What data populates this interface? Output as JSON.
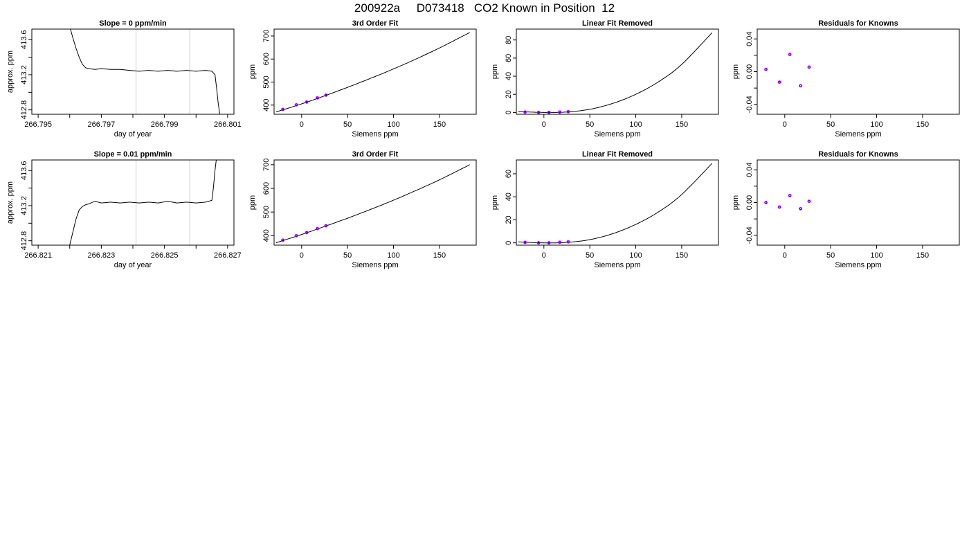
{
  "title": "200922a     D073418   CO2 Known in Position  12",
  "colors": {
    "axis": "#000000",
    "trace": "#000000",
    "window_marker": "#cccccc",
    "points": "#0000ff",
    "points_alt": "#ff00ff",
    "point_highlight": "#00c0c0"
  },
  "chart_data": [
    {
      "id": "r1c1",
      "type": "line",
      "title": "Slope =  0  ppm/min",
      "xlabel": "day of year",
      "ylabel": "approx. ppm",
      "xlim": [
        266.7948,
        266.8012
      ],
      "ylim": [
        412.75,
        413.72
      ],
      "xticks": [
        266.795,
        266.796,
        266.797,
        266.798,
        266.799,
        266.8,
        266.801
      ],
      "xtick_labels": [
        "266.795",
        "",
        "266.797",
        "",
        "266.799",
        "",
        "266.801"
      ],
      "yticks": [
        412.8,
        413.0,
        413.2,
        413.4,
        413.6
      ],
      "ytick_labels": [
        "412.8",
        "",
        "413.2",
        "",
        "413.6"
      ],
      "vlines": [
        266.7981,
        266.7998
      ],
      "series": [
        {
          "x": [
            266.796,
            266.7961,
            266.7962,
            266.7963,
            266.7964,
            266.7965,
            266.7966,
            266.7968,
            266.797,
            266.7973,
            266.7976,
            266.7979,
            266.7982,
            266.7985,
            266.7988,
            266.7991,
            266.7994,
            266.7997,
            266.8,
            266.8003,
            266.8005,
            266.8006,
            266.80065,
            266.8007,
            266.80075
          ],
          "y": [
            413.75,
            413.62,
            413.5,
            413.4,
            413.32,
            413.28,
            413.27,
            413.26,
            413.27,
            413.26,
            413.26,
            413.25,
            413.24,
            413.25,
            413.24,
            413.25,
            413.24,
            413.25,
            413.24,
            413.25,
            413.24,
            413.2,
            413.05,
            412.88,
            412.75
          ]
        }
      ]
    },
    {
      "id": "r1c2",
      "type": "scatter",
      "title": "3rd Order Fit",
      "xlabel": "Siemens ppm",
      "ylabel": "ppm",
      "xlim": [
        -30,
        190
      ],
      "ylim": [
        360,
        730
      ],
      "xticks": [
        0,
        50,
        100,
        150
      ],
      "xtick_labels": [
        "0",
        "50",
        "100",
        "150"
      ],
      "yticks": [
        400,
        500,
        600,
        700
      ],
      "ytick_labels": [
        "400",
        "500",
        "600",
        "700"
      ],
      "points": {
        "x": [
          -20.5,
          -5.8,
          5.5,
          17.2,
          26.5
        ],
        "y": [
          381,
          401,
          413,
          431,
          443
        ]
      },
      "curve": {
        "x": [
          -28,
          0,
          25,
          50,
          75,
          100,
          125,
          150,
          183
        ],
        "y": [
          370,
          405,
          440,
          477,
          516,
          557,
          601,
          648,
          715
        ]
      }
    },
    {
      "id": "r1c3",
      "type": "scatter",
      "title": "Linear Fit Removed",
      "xlabel": "Siemens ppm",
      "ylabel": "ppm",
      "xlim": [
        -30,
        190
      ],
      "ylim": [
        -2,
        92
      ],
      "xticks": [
        0,
        50,
        100,
        150
      ],
      "xtick_labels": [
        "0",
        "50",
        "100",
        "150"
      ],
      "yticks": [
        0,
        20,
        40,
        60,
        80
      ],
      "ytick_labels": [
        "0",
        "20",
        "40",
        "60",
        "80"
      ],
      "points": {
        "x": [
          -20.5,
          -5.8,
          5.5,
          17.2,
          26.5
        ],
        "y": [
          0.4,
          0.0,
          0.0,
          0.4,
          0.9
        ]
      },
      "curve": {
        "x": [
          -28,
          0,
          25,
          50,
          75,
          100,
          125,
          150,
          183
        ],
        "y": [
          1.0,
          0.0,
          0.5,
          3.5,
          10.0,
          20.0,
          34.0,
          53.0,
          88.0
        ]
      }
    },
    {
      "id": "r1c4",
      "type": "scatter",
      "title": "Residuals for Knowns",
      "xlabel": "Siemens ppm",
      "ylabel": "ppm",
      "xlim": [
        -30,
        190
      ],
      "ylim": [
        -0.052,
        0.052
      ],
      "xticks": [
        0,
        50,
        100,
        150
      ],
      "xtick_labels": [
        "0",
        "50",
        "100",
        "150"
      ],
      "yticks": [
        -0.04,
        -0.02,
        0.0,
        0.02,
        0.04
      ],
      "ytick_labels": [
        "-0.04",
        "",
        "0.00",
        "",
        "0.04"
      ],
      "points": {
        "x": [
          -20.5,
          -5.8,
          5.5,
          17.2,
          26.5
        ],
        "y": [
          0.0028,
          -0.0128,
          0.021,
          -0.0172,
          0.0055
        ]
      }
    },
    {
      "id": "r2c1",
      "type": "line",
      "title": "Slope =  0.01  ppm/min",
      "xlabel": "day of year",
      "ylabel": "approx. ppm",
      "xlim": [
        266.8208,
        266.8272
      ],
      "ylim": [
        412.75,
        413.72
      ],
      "xticks": [
        266.821,
        266.822,
        266.823,
        266.824,
        266.825,
        266.826,
        266.827
      ],
      "xtick_labels": [
        "266.821",
        "",
        "266.823",
        "",
        "266.825",
        "",
        "266.827"
      ],
      "yticks": [
        412.8,
        413.0,
        413.2,
        413.4,
        413.6
      ],
      "ytick_labels": [
        "412.8",
        "",
        "413.2",
        "",
        "413.6"
      ],
      "vlines": [
        266.8241,
        266.8258
      ],
      "series": [
        {
          "x": [
            266.822,
            266.8221,
            266.8222,
            266.8223,
            266.8224,
            266.8225,
            266.8226,
            266.8228,
            266.823,
            266.8233,
            266.8236,
            266.8239,
            266.8242,
            266.8245,
            266.8248,
            266.8251,
            266.8254,
            266.8257,
            266.826,
            266.8263,
            266.8265,
            266.82655,
            266.8266,
            266.82665
          ],
          "y": [
            412.75,
            412.9,
            413.05,
            413.15,
            413.19,
            413.21,
            413.22,
            413.25,
            413.23,
            413.24,
            413.23,
            413.24,
            413.23,
            413.24,
            413.23,
            413.25,
            413.23,
            413.24,
            413.23,
            413.24,
            413.26,
            413.4,
            413.6,
            413.75
          ]
        }
      ]
    },
    {
      "id": "r2c2",
      "type": "scatter",
      "title": "3rd Order Fit",
      "xlabel": "Siemens ppm",
      "ylabel": "ppm",
      "xlim": [
        -30,
        190
      ],
      "ylim": [
        360,
        720
      ],
      "xticks": [
        0,
        50,
        100,
        150
      ],
      "xtick_labels": [
        "0",
        "50",
        "100",
        "150"
      ],
      "yticks": [
        400,
        500,
        600,
        700
      ],
      "ytick_labels": [
        "400",
        "500",
        "600",
        "700"
      ],
      "points": {
        "x": [
          -20.5,
          -5.8,
          5.5,
          17.2,
          26.5
        ],
        "y": [
          381,
          400,
          413,
          430,
          442
        ]
      },
      "curve": {
        "x": [
          -28,
          0,
          25,
          50,
          75,
          100,
          125,
          150,
          183
        ],
        "y": [
          370,
          405,
          439,
          474,
          511,
          550,
          592,
          636,
          700
        ]
      }
    },
    {
      "id": "r2c3",
      "type": "scatter",
      "title": "Linear Fit Removed",
      "xlabel": "Siemens ppm",
      "ylabel": "ppm",
      "xlim": [
        -30,
        190
      ],
      "ylim": [
        -2,
        72
      ],
      "xticks": [
        0,
        50,
        100,
        150
      ],
      "xtick_labels": [
        "0",
        "50",
        "100",
        "150"
      ],
      "yticks": [
        0,
        20,
        40,
        60
      ],
      "ytick_labels": [
        "0",
        "20",
        "40",
        "60"
      ],
      "points": {
        "x": [
          -20.5,
          -5.8,
          5.5,
          17.2,
          26.5
        ],
        "y": [
          0.4,
          0.0,
          0.0,
          0.5,
          0.9
        ]
      },
      "curve": {
        "x": [
          -28,
          0,
          25,
          50,
          75,
          100,
          125,
          150,
          183
        ],
        "y": [
          0.8,
          0.0,
          0.4,
          2.8,
          8.0,
          16.0,
          27.0,
          42.0,
          69.0
        ]
      }
    },
    {
      "id": "r2c4",
      "type": "scatter",
      "title": "Residuals for Knowns",
      "xlabel": "Siemens ppm",
      "ylabel": "ppm",
      "xlim": [
        -30,
        190
      ],
      "ylim": [
        -0.052,
        0.052
      ],
      "xticks": [
        0,
        50,
        100,
        150
      ],
      "xtick_labels": [
        "0",
        "50",
        "100",
        "150"
      ],
      "yticks": [
        -0.04,
        -0.02,
        0.0,
        0.02,
        0.04
      ],
      "ytick_labels": [
        "-0.04",
        "",
        "0.00",
        "",
        "0.04"
      ],
      "points": {
        "x": [
          -20.5,
          -5.8,
          5.5,
          17.2,
          26.5
        ],
        "y": [
          0.0,
          -0.0055,
          0.0085,
          -0.0075,
          0.0015
        ]
      }
    }
  ]
}
